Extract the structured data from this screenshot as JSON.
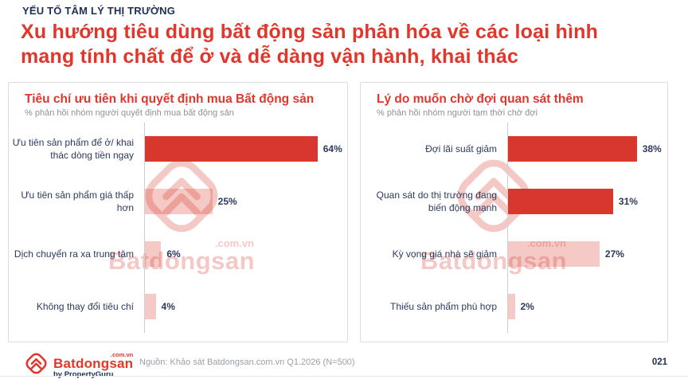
{
  "page": {
    "eyebrow": "YẾU TỐ TÂM LÝ THỊ TRƯỜNG",
    "title": "Xu hướng tiêu dùng bất động sản phân hóa về các loại hình mang tính chất để ở và dễ dàng vận hành, khai thác",
    "title_lines": [
      "Xu hướng tiêu dùng bất động sản phân hóa về các loại hình",
      "mang tính chất để ở và dễ dàng vận hành, khai thác"
    ],
    "source": "Nguồn: Khảo sát Batdongsan.com.vn Q1.2026 (N=500)",
    "page_number": "021"
  },
  "brand": {
    "name": "Batdongsan",
    "domain": ".com.vn",
    "byline": "by PropertyGuru"
  },
  "watermark": {
    "name": "Batdongsan",
    "domain": ".com.vn"
  },
  "colors": {
    "title_red": "#e2362b",
    "bar_dark": "#d8372e",
    "bar_light": "rgba(216,55,46,0.27)",
    "navy_text": "#2b3a5c",
    "subtitle_gray": "#8f9196",
    "panel_border": "#dcdcdc"
  },
  "chart_data": [
    {
      "type": "bar",
      "orientation": "horizontal",
      "title": "Tiêu chí ưu tiên khi quyết định mua Bất động sản",
      "subtitle": "% phản hồi nhóm người quyết định mua bất động sản",
      "categories": [
        "Ưu tiên sản phẩm để ở/ khai thác dòng tiền ngay",
        "Ưu tiên sản phẩm giá thấp hơn",
        "Dịch chuyển ra xa trung tâm",
        "Không thay đổi tiêu chí"
      ],
      "values": [
        64,
        25,
        6,
        4
      ],
      "value_labels": [
        "64%",
        "25%",
        "6%",
        "4%"
      ],
      "emphasis": [
        true,
        false,
        false,
        false
      ],
      "unit": "%",
      "axis_max": 75,
      "grid": false,
      "legend": false
    },
    {
      "type": "bar",
      "orientation": "horizontal",
      "title": "Lý do muốn chờ đợi quan sát thêm",
      "subtitle": "% phản hồi nhóm người tạm thời chờ đợi",
      "categories": [
        "Đợi lãi suất giảm",
        "Quan sát do thị trường đang biến động mạnh",
        "Kỳ vọng giá nhà sẽ giảm",
        "Thiếu sản phẩm phù hợp"
      ],
      "values": [
        38,
        31,
        27,
        2
      ],
      "value_labels": [
        "38%",
        "31%",
        "27%",
        "2%"
      ],
      "emphasis": [
        true,
        true,
        false,
        false
      ],
      "unit": "%",
      "axis_max": 47,
      "grid": false,
      "legend": false
    }
  ]
}
